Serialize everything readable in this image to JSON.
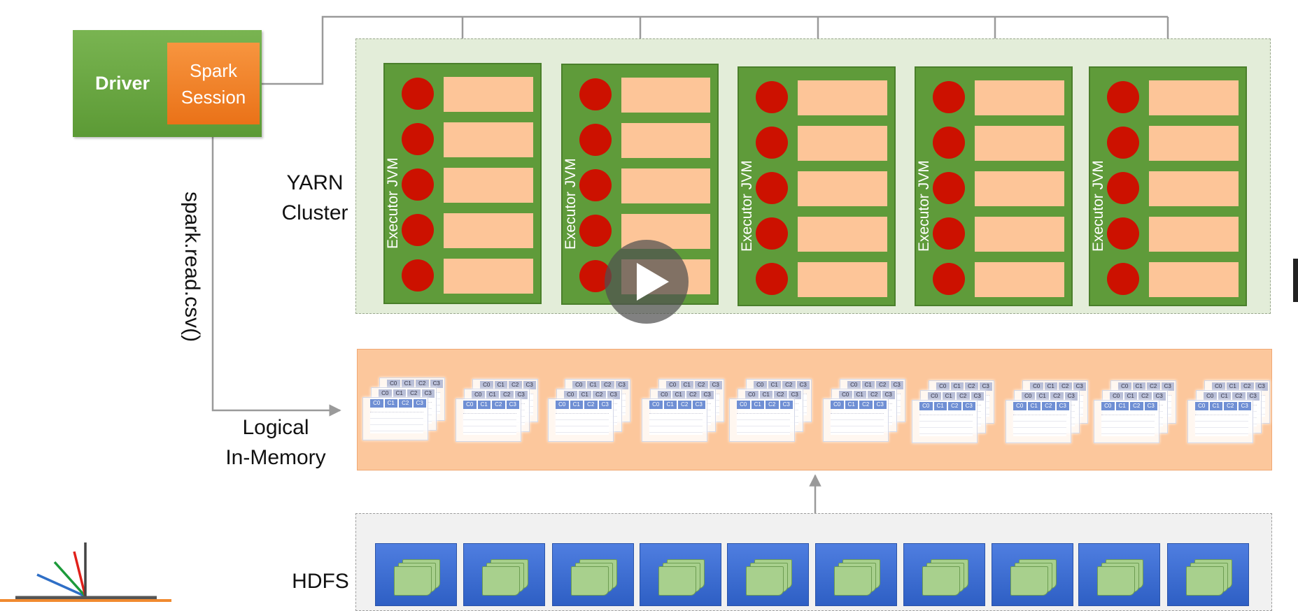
{
  "driver": {
    "label": "Driver",
    "session_line1": "Spark",
    "session_line2": "Session"
  },
  "yarn": {
    "line1": "YARN",
    "line2": "Cluster"
  },
  "executor_label": "Executor JVM",
  "read_call": "spark.read.csv()",
  "memory": {
    "line1": "Logical",
    "line2": "In-Memory"
  },
  "hdfs": {
    "label": "HDFS"
  },
  "column_headers": [
    "C0",
    "C1",
    "C2",
    "C3"
  ],
  "colors": {
    "driver_green": "#5c9a35",
    "session_orange": "#ea7218",
    "executor_green": "#5f9b3a",
    "core_red": "#cc1100",
    "slot_peach": "#fdc598",
    "memory_band": "#fcc79c",
    "hdfs_block_blue": "#2e5fc4",
    "file_green": "#a8d08d"
  },
  "icons": [
    "play-icon",
    "file-stack-icon",
    "logo-icon"
  ]
}
